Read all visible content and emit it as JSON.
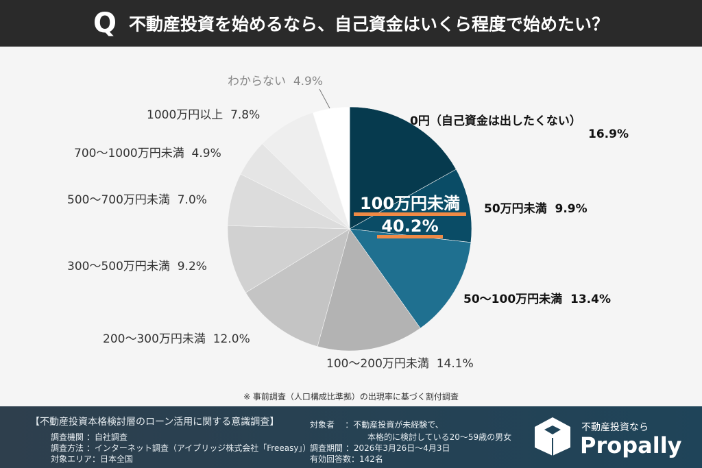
{
  "header": {
    "q": "Q",
    "title": "不動産投資を始めるなら、自己資金はいくら程度で始めたい？"
  },
  "chart_data": {
    "type": "pie",
    "title": "不動産投資を始めるなら、自己資金はいくら程度で始めたい？",
    "categories": [
      "0円（自己資金は出したくない）",
      "50万円未満",
      "50〜100万円未満",
      "100〜200万円未満",
      "200〜300万円未満",
      "300〜500万円未満",
      "500〜700万円未満",
      "700〜1000万円未満",
      "1000万円以上",
      "わからない"
    ],
    "values": [
      16.9,
      9.9,
      13.4,
      14.1,
      12.0,
      9.2,
      7.0,
      4.9,
      7.8,
      4.9
    ],
    "value_labels": [
      "16.9%",
      "9.9%",
      "13.4%",
      "14.1%",
      "12.0%",
      "9.2%",
      "7.0%",
      "4.9%",
      "7.8%",
      "4.9%"
    ],
    "colors": [
      "#063a4e",
      "#0a4c66",
      "#1f7090",
      "#b3b3b3",
      "#c4c4c4",
      "#d1d1d1",
      "#dcdcdc",
      "#e5e5e5",
      "#eeeeee",
      "#ffffff"
    ],
    "annotation": {
      "line1": "100万円未満",
      "line2": "40.2%",
      "underline_color": "#f08a45"
    }
  },
  "note": "※ 事前調査（人口構成比準拠）の出現率に基づく割付調査",
  "footer": {
    "heading": "【不動産投資本格検討層のローン活用に関する意識調査】",
    "rows": [
      {
        "k": "調査機関",
        "v": "：自社調査"
      },
      {
        "k": "調査方法",
        "v": "：インターネット調査（アイブリッジ株式会社「Freeasy」）"
      },
      {
        "k": "対象エリア",
        "v": "：日本全国"
      }
    ],
    "rows2": [
      {
        "k": "対象者",
        "v": "：不動産投資が未経験で、"
      },
      {
        "k": "",
        "v": "本格的に検討している20〜59歳の男女"
      },
      {
        "k": "調査期間",
        "v": "：2026年3月26日〜4月3日"
      },
      {
        "k": "有効回答数",
        "v": "：142名"
      }
    ],
    "tagline": "不動産投資なら",
    "brand": "Propally"
  }
}
